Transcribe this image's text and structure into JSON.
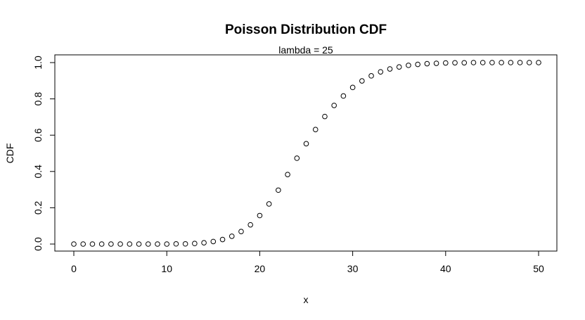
{
  "chart_data": {
    "type": "scatter",
    "title": "Poisson Distribution CDF",
    "subtitle": "lambda = 25",
    "xlabel": "x",
    "ylabel": "CDF",
    "xlim": [
      0,
      50
    ],
    "ylim": [
      0,
      1
    ],
    "x_ticks": [
      0,
      10,
      20,
      30,
      40,
      50
    ],
    "y_ticks": [
      0.0,
      0.2,
      0.4,
      0.6,
      0.8,
      1.0
    ],
    "x_tick_labels": [
      "0",
      "10",
      "20",
      "30",
      "40",
      "50"
    ],
    "y_tick_labels": [
      "0.0",
      "0.2",
      "0.4",
      "0.6",
      "0.8",
      "1.0"
    ],
    "grid": false,
    "marker": "open-circle",
    "x": [
      0,
      1,
      2,
      3,
      4,
      5,
      6,
      7,
      8,
      9,
      10,
      11,
      12,
      13,
      14,
      15,
      16,
      17,
      18,
      19,
      20,
      21,
      22,
      23,
      24,
      25,
      26,
      27,
      28,
      29,
      30,
      31,
      32,
      33,
      34,
      35,
      36,
      37,
      38,
      39,
      40,
      41,
      42,
      43,
      44,
      45,
      46,
      47,
      48,
      49,
      50
    ],
    "y": [
      0.0,
      0.0,
      0.0,
      0.0,
      0.0,
      0.0,
      0.0,
      0.0,
      0.0,
      0.0,
      0.0,
      0.001,
      0.001,
      0.003,
      0.007,
      0.014,
      0.025,
      0.043,
      0.069,
      0.106,
      0.157,
      0.221,
      0.297,
      0.383,
      0.473,
      0.553,
      0.631,
      0.703,
      0.764,
      0.816,
      0.863,
      0.899,
      0.927,
      0.949,
      0.965,
      0.976,
      0.985,
      0.99,
      0.994,
      0.996,
      0.998,
      0.999,
      0.999,
      1.0,
      1.0,
      1.0,
      1.0,
      1.0,
      1.0,
      1.0,
      1.0
    ]
  }
}
